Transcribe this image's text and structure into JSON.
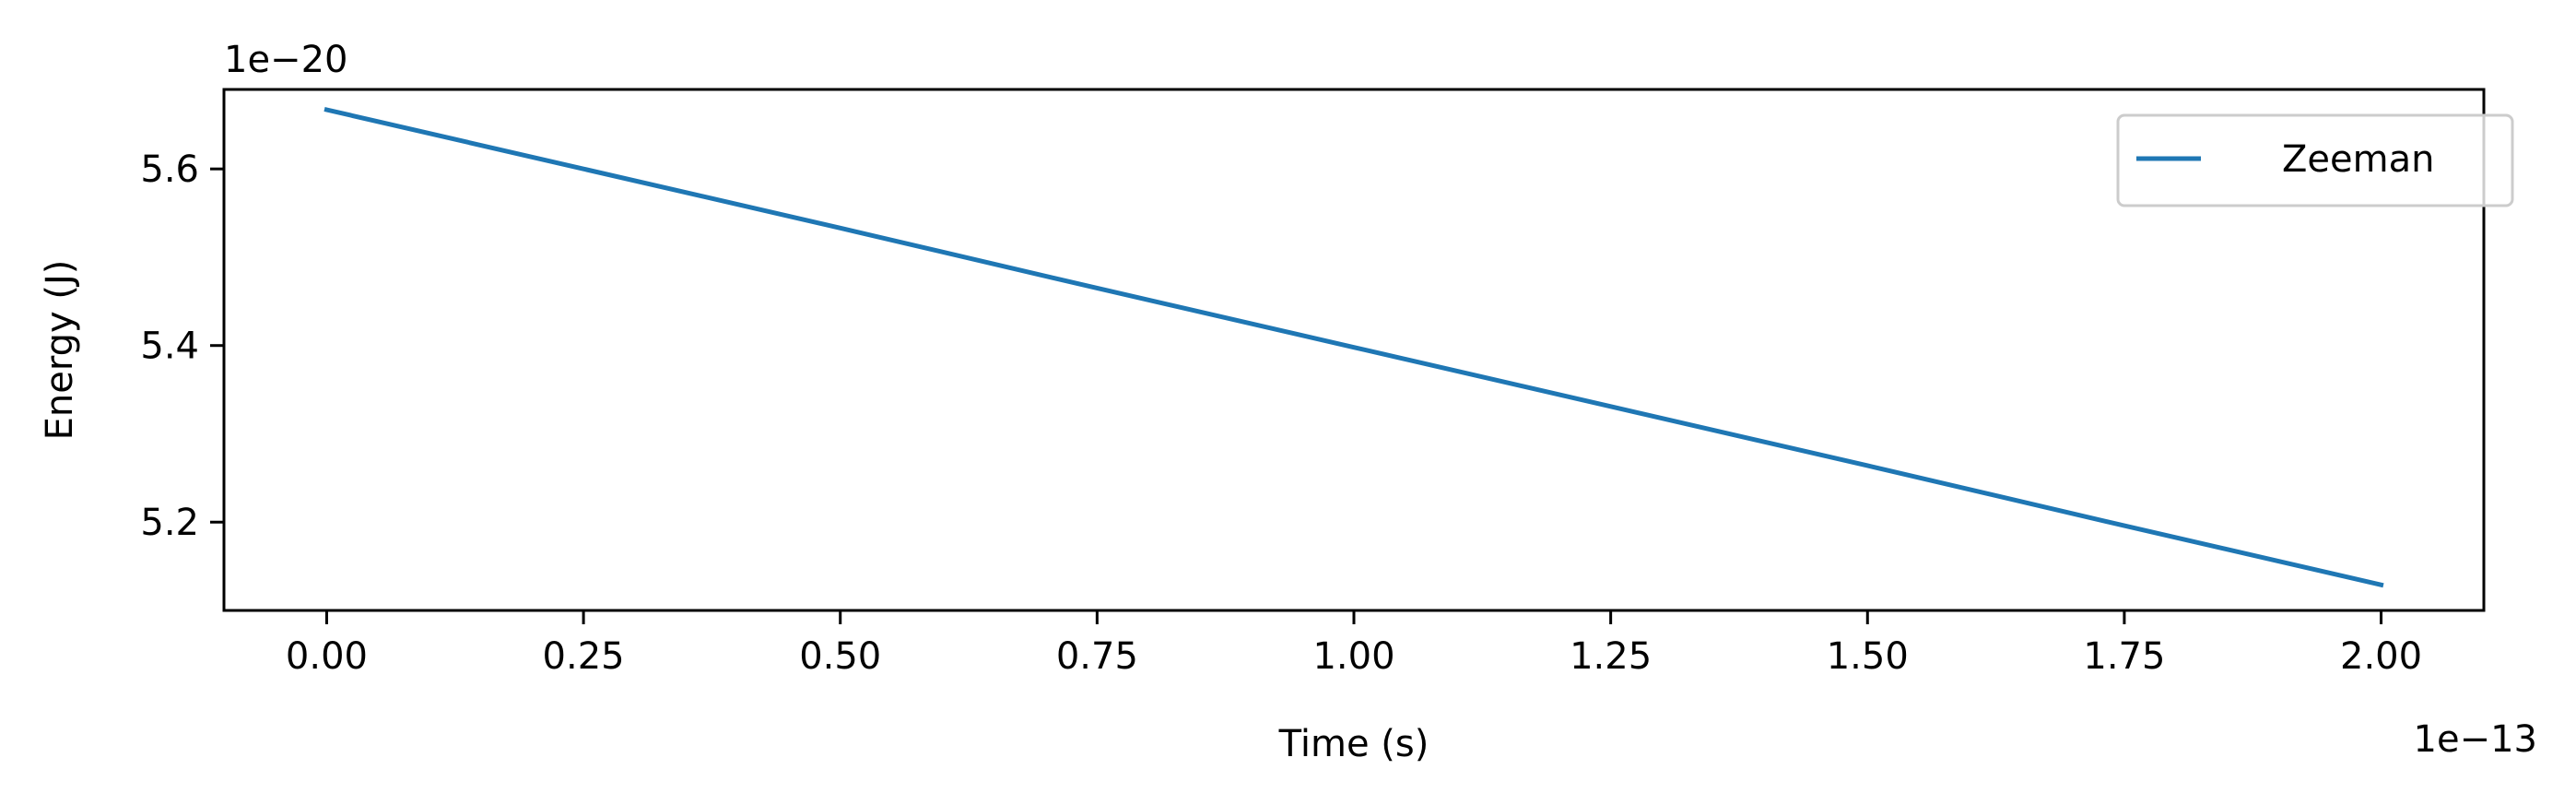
{
  "chart_data": {
    "type": "line",
    "xlabel": "Time (s)",
    "ylabel": "Energy (J)",
    "x_offset_label": "1e−13",
    "y_offset_label": "1e−20",
    "xlim": [
      -0.1,
      2.1
    ],
    "ylim": [
      5.1,
      5.69
    ],
    "x_ticks": [
      0.0,
      0.25,
      0.5,
      0.75,
      1.0,
      1.25,
      1.5,
      1.75,
      2.0
    ],
    "x_tick_labels": [
      "0.00",
      "0.25",
      "0.50",
      "0.75",
      "1.00",
      "1.25",
      "1.50",
      "1.75",
      "2.00"
    ],
    "y_ticks": [
      5.2,
      5.4,
      5.6
    ],
    "y_tick_labels": [
      "5.2",
      "5.4",
      "5.6"
    ],
    "grid": false,
    "legend_position": "top-right",
    "series": [
      {
        "name": "Zeeman",
        "color": "#1f77b4",
        "x": [
          0.0,
          0.25,
          0.5,
          0.75,
          1.0,
          1.25,
          1.5,
          1.75,
          2.0
        ],
        "y": [
          5.667,
          5.6,
          5.533,
          5.465,
          5.398,
          5.331,
          5.264,
          5.196,
          5.129
        ]
      }
    ]
  }
}
